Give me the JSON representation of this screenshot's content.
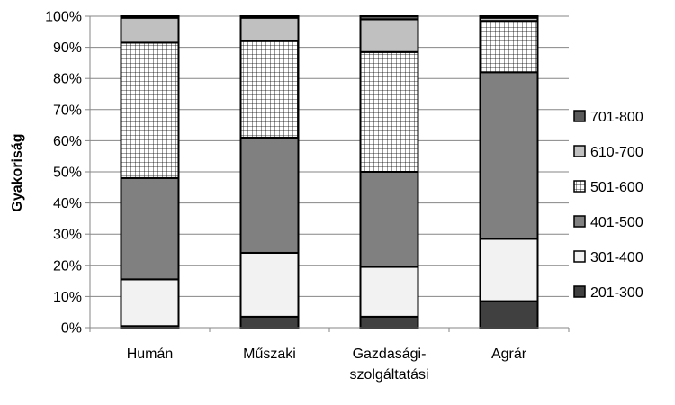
{
  "chart_data": {
    "type": "bar",
    "stacked": true,
    "percent": true,
    "title": "",
    "xlabel": "",
    "ylabel": "Gyakoriság",
    "ylim": [
      0,
      100
    ],
    "yticks": [
      "0%",
      "10%",
      "20%",
      "30%",
      "40%",
      "50%",
      "60%",
      "70%",
      "80%",
      "90%",
      "100%"
    ],
    "categories": [
      [
        "Humán"
      ],
      [
        "Műszaki"
      ],
      [
        "Gazdasági-",
        "szolgáltatási"
      ],
      [
        "Agrár"
      ]
    ],
    "series": [
      {
        "name": "201-300",
        "values": [
          0.5,
          3.5,
          3.5,
          8.5
        ],
        "color": "#404040",
        "pattern": "solid"
      },
      {
        "name": "301-400",
        "values": [
          15,
          20.5,
          16,
          20
        ],
        "color": "#f2f2f2",
        "pattern": "solid"
      },
      {
        "name": "401-500",
        "values": [
          32.5,
          37,
          30.5,
          53.5
        ],
        "color": "#808080",
        "pattern": "solid"
      },
      {
        "name": "501-600",
        "values": [
          43.5,
          31,
          38.5,
          16.5
        ],
        "color": "#ffffff",
        "pattern": "grid"
      },
      {
        "name": "610-700",
        "values": [
          8,
          7.5,
          10.5,
          1
        ],
        "color": "#c0c0c0",
        "pattern": "solid"
      },
      {
        "name": "701-800",
        "values": [
          0.5,
          0.5,
          1,
          0.5
        ],
        "color": "#595959",
        "pattern": "solid"
      }
    ],
    "legend_position": "right",
    "legend_order": [
      "701-800",
      "610-700",
      "501-600",
      "401-500",
      "301-400",
      "201-300"
    ],
    "grid": true
  }
}
